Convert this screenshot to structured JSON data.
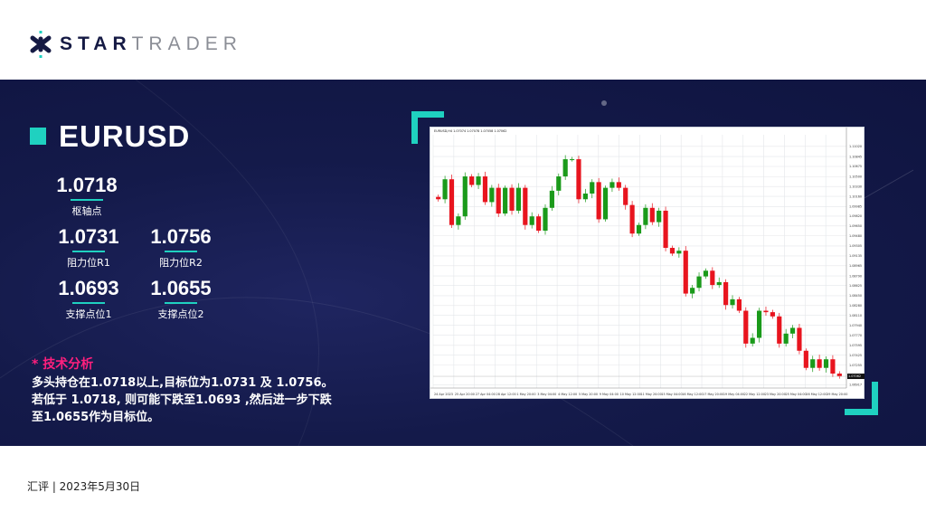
{
  "brand": {
    "name_bold": "STAR",
    "name_light": "TRADER"
  },
  "pair": "EURUSD",
  "levels": {
    "pivot": {
      "value": "1.0718",
      "label": "枢轴点"
    },
    "r1": {
      "value": "1.0731",
      "label": "阻力位R1"
    },
    "r2": {
      "value": "1.0756",
      "label": "阻力位R2"
    },
    "s1": {
      "value": "1.0693",
      "label": "支撑点位1"
    },
    "s2": {
      "value": "1.0655",
      "label": "支撑点位2"
    }
  },
  "analysis": {
    "title": "* 技术分析",
    "lines": [
      "多头持仓在1.0718以上,目标位为1.0731 及 1.0756。",
      "若低于 1.0718, 则可能下跌至1.0693 ,然后进一步下跌",
      "至1.0655作为目标位。"
    ]
  },
  "footer": "汇评 | 2023年5月30日",
  "colors": {
    "accent": "#1fd1c0",
    "highlight": "#ff1f7d",
    "banner": "#141a4a",
    "bull": "#1a9a1a",
    "bear": "#e8141e"
  },
  "chart_data": {
    "type": "candlestick",
    "title": "EURUSD,H4 1.07074 1.07078 1.07058 1.07062",
    "ylim": [
      1.0686,
      1.1122
    ],
    "y_ticks": [
      "1.11020",
      "1.10845",
      "1.10675",
      "1.10500",
      "1.10330",
      "1.10160",
      "1.09985",
      "1.09820",
      "1.09650",
      "1.09480",
      "1.09305",
      "1.09135",
      "1.08965",
      "1.08790",
      "1.08625",
      "1.08450",
      "1.08280",
      "1.08110",
      "1.07940",
      "1.07770",
      "1.07595",
      "1.07425",
      "1.07255",
      "1.06917"
    ],
    "current_price": "1.07062",
    "x_ticks": [
      "24 Apr 2023",
      "25 Apr 20:00",
      "27 Apr 04:00",
      "28 Apr 12:00",
      "1 May 20:00",
      "3 May 04:00",
      "4 May 12:00",
      "5 May 20:00",
      "9 May 04:00",
      "10 May 12:00",
      "11 May 20:00",
      "15 May 04:00",
      "16 May 12:00",
      "17 May 20:00",
      "19 May 04:00",
      "22 May 12:00",
      "23 May 20:00",
      "25 May 04:00",
      "26 May 12:00",
      "29 May 20:00"
    ],
    "closes": [
      1.1011,
      1.10454,
      1.09667,
      1.09815,
      1.10503,
      1.10356,
      1.10503,
      1.10061,
      1.10307,
      1.09864,
      1.10307,
      1.09913,
      1.10307,
      1.09667,
      1.09815,
      1.09569,
      1.09962,
      1.10257,
      1.10503,
      1.10799,
      1.10799,
      1.1011,
      1.10208,
      1.10405,
      1.09765,
      1.10307,
      1.10405,
      1.10307,
      1.10011,
      1.09519,
      1.09667,
      1.09962,
      1.09716,
      1.09913,
      1.09273,
      1.09175,
      1.09224,
      1.08486,
      1.08585,
      1.08781,
      1.0888,
      1.08634,
      1.08683,
      1.08289,
      1.08388,
      1.08191,
      1.07625,
      1.07724,
      1.08191,
      1.08166,
      1.08093,
      1.07625,
      1.07797,
      1.07896,
      1.07502,
      1.07207,
      1.07355,
      1.07207,
      1.07355,
      1.07109,
      1.07062
    ]
  }
}
